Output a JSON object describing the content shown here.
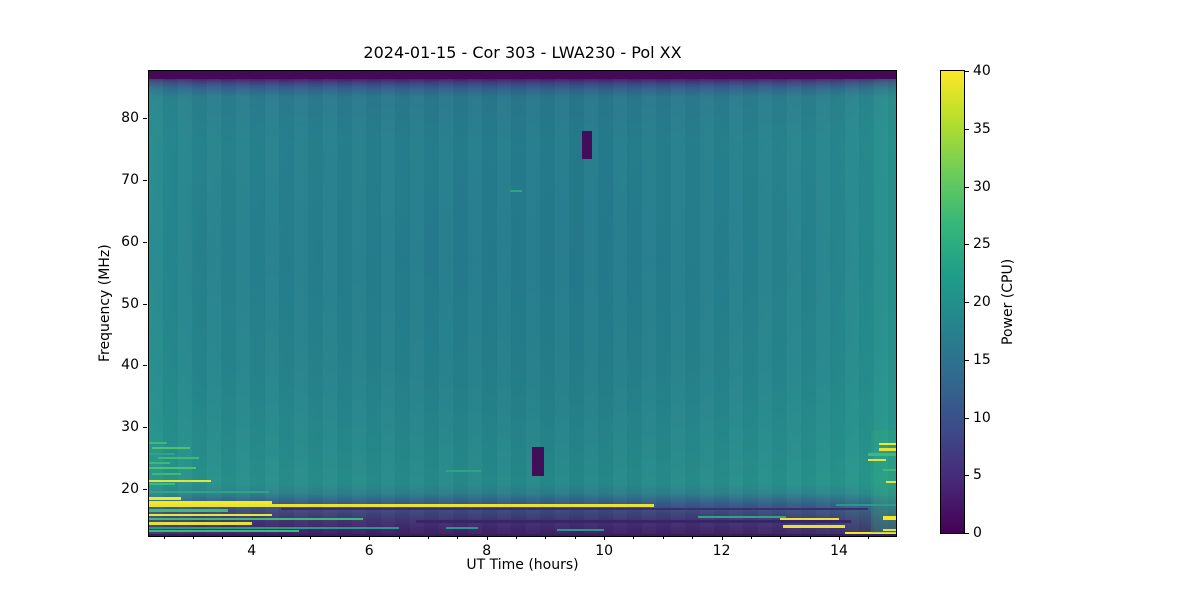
{
  "chart_data": {
    "type": "heatmap",
    "title": "2024-01-15 - Cor 303 - LWA230 - Pol XX",
    "xlabel": "UT Time (hours)",
    "ylabel": "Frequency (MHz)",
    "xlim": [
      2.25,
      14.97
    ],
    "ylim": [
      12.4,
      87.6
    ],
    "x_ticks": [
      4,
      6,
      8,
      10,
      12,
      14
    ],
    "x_minor_step": 0.5,
    "y_ticks": [
      20,
      30,
      40,
      50,
      60,
      70,
      80
    ],
    "colormap": "viridis",
    "colorbar": {
      "label": "Power (CPU)",
      "range": [
        0,
        40
      ],
      "ticks": [
        0,
        5,
        10,
        15,
        20,
        25,
        30,
        35,
        40
      ]
    },
    "background_levels": {
      "mid_band_power": 20,
      "left_edge_power": 23,
      "low_freq_band_power_below_18MHz": 4,
      "top_edge_band_power_above_86MHz": 0
    },
    "dropouts": [
      {
        "t": [
          9.62,
          9.79
        ],
        "f": [
          73.4,
          77.9
        ],
        "power": 0
      },
      {
        "t": [
          8.78,
          8.97
        ],
        "f": [
          22.1,
          26.8
        ],
        "power": 0
      }
    ],
    "rfi_streaks": [
      {
        "t": [
          2.25,
          14.97
        ],
        "f": [
          86.35,
          87.6
        ],
        "c": "#440a57",
        "power": 0
      },
      {
        "t": [
          2.25,
          2.55
        ],
        "f": [
          27.2,
          27.6
        ],
        "c": "#3dbb76",
        "power": 30
      },
      {
        "t": [
          2.3,
          2.95
        ],
        "f": [
          26.4,
          26.8
        ],
        "c": "#4ec36c",
        "power": 32
      },
      {
        "t": [
          2.25,
          2.7
        ],
        "f": [
          25.5,
          25.9
        ],
        "c": "#2fa383",
        "power": 27
      },
      {
        "t": [
          2.4,
          3.1
        ],
        "f": [
          24.8,
          25.2
        ],
        "c": "#3dbb76",
        "power": 30
      },
      {
        "t": [
          2.25,
          2.6
        ],
        "f": [
          24.0,
          24.4
        ],
        "c": "#3dbb76",
        "power": 30
      },
      {
        "t": [
          2.25,
          3.05
        ],
        "f": [
          23.2,
          23.6
        ],
        "c": "#4ec36c",
        "power": 32
      },
      {
        "t": [
          2.3,
          2.8
        ],
        "f": [
          22.2,
          22.6
        ],
        "c": "#3dbb76",
        "power": 30
      },
      {
        "t": [
          2.25,
          3.3
        ],
        "f": [
          21.1,
          21.5
        ],
        "c": "#e6e338",
        "power": 38
      },
      {
        "t": [
          2.25,
          2.7
        ],
        "f": [
          20.6,
          21.0
        ],
        "c": "#3dbb76",
        "power": 30
      },
      {
        "t": [
          2.25,
          4.3
        ],
        "f": [
          19.3,
          19.7
        ],
        "c": "#2fa383",
        "power": 27
      },
      {
        "t": [
          2.25,
          2.8
        ],
        "f": [
          18.3,
          18.7
        ],
        "c": "#f8e621",
        "power": 40
      },
      {
        "t": [
          2.25,
          4.35
        ],
        "f": [
          17.55,
          18.05
        ],
        "c": "#f8e621",
        "power": 40
      },
      {
        "t": [
          2.25,
          10.85
        ],
        "f": [
          17.15,
          17.5
        ],
        "c": "#e9e432",
        "power": 39
      },
      {
        "t": [
          2.25,
          3.6
        ],
        "f": [
          16.3,
          16.7
        ],
        "c": "#3dbb76",
        "power": 30
      },
      {
        "t": [
          2.25,
          4.35
        ],
        "f": [
          15.6,
          16.0
        ],
        "c": "#ece63a",
        "power": 39
      },
      {
        "t": [
          2.25,
          5.9
        ],
        "f": [
          15.0,
          15.35
        ],
        "c": "#3dbb76",
        "power": 30
      },
      {
        "t": [
          2.25,
          4.0
        ],
        "f": [
          14.2,
          14.6
        ],
        "c": "#e6e338",
        "power": 38
      },
      {
        "t": [
          2.25,
          6.5
        ],
        "f": [
          13.5,
          13.85
        ],
        "c": "#27988b",
        "power": 23
      },
      {
        "t": [
          2.25,
          4.8
        ],
        "f": [
          13.0,
          13.35
        ],
        "c": "#3dbb76",
        "power": 30
      },
      {
        "t": [
          7.3,
          7.9
        ],
        "f": [
          22.7,
          23.0
        ],
        "c": "#2fa383",
        "power": 27
      },
      {
        "t": [
          8.4,
          8.6
        ],
        "f": [
          68.0,
          68.3
        ],
        "c": "#2fa383",
        "power": 27
      },
      {
        "t": [
          7.3,
          7.85
        ],
        "f": [
          13.6,
          13.9
        ],
        "c": "#27988b",
        "power": 23
      },
      {
        "t": [
          9.2,
          10.0
        ],
        "f": [
          13.3,
          13.6
        ],
        "c": "#27988b",
        "power": 23
      },
      {
        "t": [
          11.6,
          13.1
        ],
        "f": [
          15.35,
          15.65
        ],
        "c": "#2fa383",
        "power": 27
      },
      {
        "t": [
          13.0,
          14.0
        ],
        "f": [
          14.9,
          15.25
        ],
        "c": "#e6e338",
        "power": 38
      },
      {
        "t": [
          13.05,
          14.1
        ],
        "f": [
          13.75,
          14.1
        ],
        "c": "#e6e338",
        "power": 38
      },
      {
        "t": [
          14.1,
          14.97
        ],
        "f": [
          12.75,
          13.1
        ],
        "c": "#f8e621",
        "power": 40
      },
      {
        "t": [
          13.95,
          14.97
        ],
        "f": [
          17.3,
          17.6
        ],
        "c": "#27988b",
        "power": 23
      },
      {
        "t": [
          14.55,
          14.97
        ],
        "f": [
          12.9,
          29.5
        ],
        "c": "rgba(46,170,120,0.25)",
        "power": 26
      },
      {
        "t": [
          14.68,
          14.97
        ],
        "f": [
          27.1,
          27.5
        ],
        "c": "#f8e621",
        "power": 40
      },
      {
        "t": [
          14.68,
          14.97
        ],
        "f": [
          26.2,
          26.6
        ],
        "c": "#e6e338",
        "power": 38
      },
      {
        "t": [
          14.5,
          14.97
        ],
        "f": [
          25.4,
          25.8
        ],
        "c": "#3dbb76",
        "power": 30
      },
      {
        "t": [
          14.5,
          14.8
        ],
        "f": [
          24.5,
          24.9
        ],
        "c": "#e6e338",
        "power": 38
      },
      {
        "t": [
          14.75,
          14.97
        ],
        "f": [
          22.9,
          23.3
        ],
        "c": "#3dbb76",
        "power": 30
      },
      {
        "t": [
          14.8,
          14.97
        ],
        "f": [
          20.9,
          21.3
        ],
        "c": "#e6e338",
        "power": 38
      },
      {
        "t": [
          14.75,
          14.97
        ],
        "f": [
          15.0,
          15.7
        ],
        "c": "#f8e621",
        "power": 40
      },
      {
        "t": [
          14.75,
          14.97
        ],
        "f": [
          13.3,
          13.6
        ],
        "c": "#e6e338",
        "power": 38
      },
      {
        "t": [
          4.5,
          14.5
        ],
        "f": [
          16.6,
          16.95
        ],
        "c": "#3c2c72",
        "power": 4
      },
      {
        "t": [
          6.8,
          14.2
        ],
        "f": [
          14.55,
          14.95
        ],
        "c": "#382569",
        "power": 3
      },
      {
        "t": [
          2.25,
          14.97
        ],
        "f": [
          12.4,
          12.8
        ],
        "c": "#371d63",
        "power": 2
      }
    ]
  }
}
